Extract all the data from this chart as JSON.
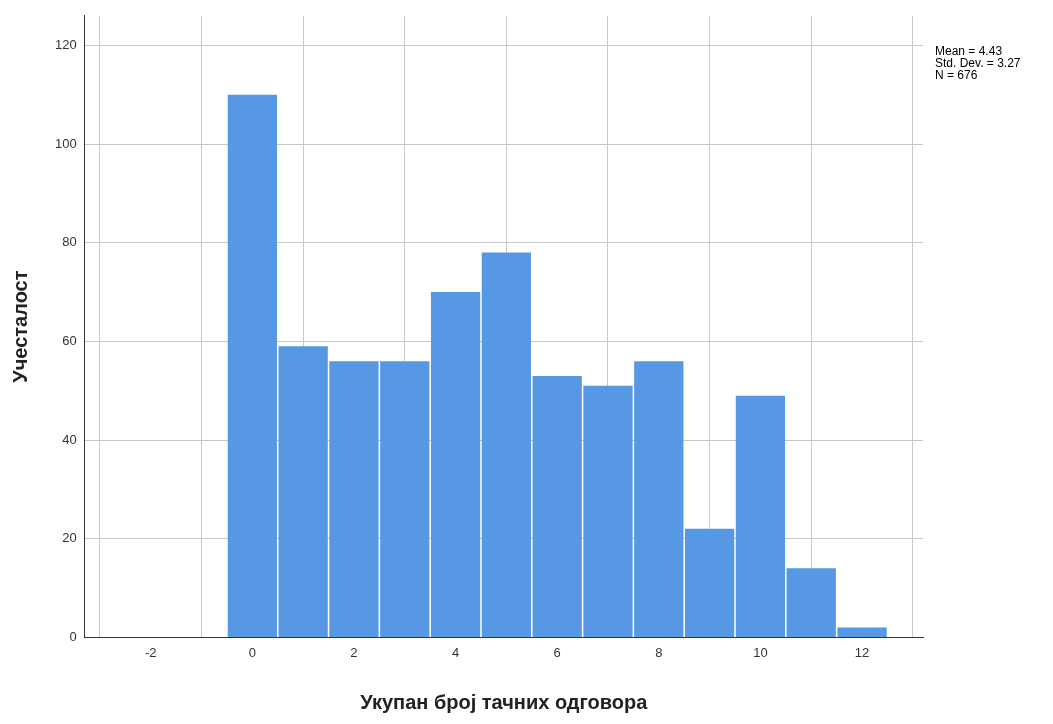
{
  "chart_data": {
    "type": "histogram",
    "xlabel": "Укупан број тачних одговора",
    "ylabel": "Учесталост",
    "bins": [
      -0.5,
      0.5,
      1.5,
      2.5,
      3.5,
      4.5,
      5.5,
      6.5,
      7.5,
      8.5,
      9.5,
      10.5,
      11.5,
      12.5
    ],
    "values": [
      110,
      59,
      56,
      56,
      70,
      78,
      53,
      51,
      56,
      22,
      49,
      14,
      2
    ],
    "color": "#5698e3",
    "xlim": [
      -3.3,
      13.2
    ],
    "xticks": [
      -2,
      0,
      2,
      4,
      6,
      8,
      10,
      12
    ],
    "ylim": [
      0,
      126
    ],
    "yticks": [
      0,
      20,
      40,
      60,
      80,
      100,
      120
    ],
    "grid": true,
    "annotations": [
      "Mean = 4.43",
      "Std. Dev. = 3.27",
      "N = 676"
    ]
  }
}
